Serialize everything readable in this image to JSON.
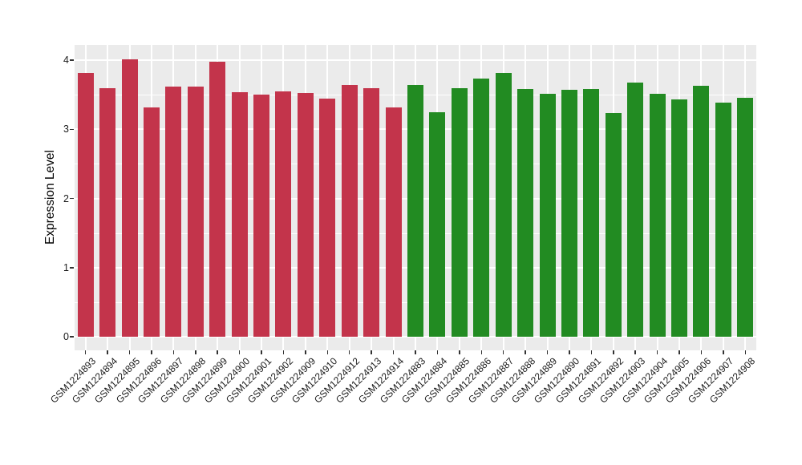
{
  "figure": {
    "background": "#FFFFFF",
    "panel_background": "#EBEBEB",
    "gridline_color": "#FFFFFF",
    "tick_color": "#333333",
    "text_color": "#1A1A1A"
  },
  "chart_data": {
    "type": "bar",
    "title": "",
    "xlabel": "",
    "ylabel": "Expression Level",
    "ylim": [
      0,
      4.2
    ],
    "yticks": [
      0,
      1,
      2,
      3,
      4
    ],
    "minor_yticks": [
      0.5,
      1.5,
      2.5,
      3.5
    ],
    "grid": "on",
    "legend": "none",
    "categories": [
      "GSM1224893",
      "GSM1224894",
      "GSM1224895",
      "GSM1224896",
      "GSM1224897",
      "GSM1224898",
      "GSM1224899",
      "GSM1224900",
      "GSM1224901",
      "GSM1224902",
      "GSM1224909",
      "GSM1224910",
      "GSM1224912",
      "GSM1224913",
      "GSM1224914",
      "GSM1224883",
      "GSM1224884",
      "GSM1224885",
      "GSM1224886",
      "GSM1224887",
      "GSM1224888",
      "GSM1224889",
      "GSM1224890",
      "GSM1224891",
      "GSM1224892",
      "GSM1224903",
      "GSM1224904",
      "GSM1224905",
      "GSM1224906",
      "GSM1224907",
      "GSM1224908"
    ],
    "values": [
      3.82,
      3.6,
      4.01,
      3.32,
      3.62,
      3.62,
      3.98,
      3.54,
      3.5,
      3.55,
      3.52,
      3.44,
      3.64,
      3.6,
      3.32,
      3.64,
      3.25,
      3.6,
      3.73,
      3.81,
      3.58,
      3.51,
      3.57,
      3.58,
      3.23,
      3.67,
      3.51,
      3.43,
      3.63,
      3.38,
      3.46
    ],
    "bar_groups": [
      "red",
      "red",
      "red",
      "red",
      "red",
      "red",
      "red",
      "red",
      "red",
      "red",
      "red",
      "red",
      "red",
      "red",
      "red",
      "green",
      "green",
      "green",
      "green",
      "green",
      "green",
      "green",
      "green",
      "green",
      "green",
      "green",
      "green",
      "green",
      "green",
      "green",
      "green"
    ],
    "group_colors": {
      "red": "#C3344B",
      "green": "#228B22"
    }
  }
}
